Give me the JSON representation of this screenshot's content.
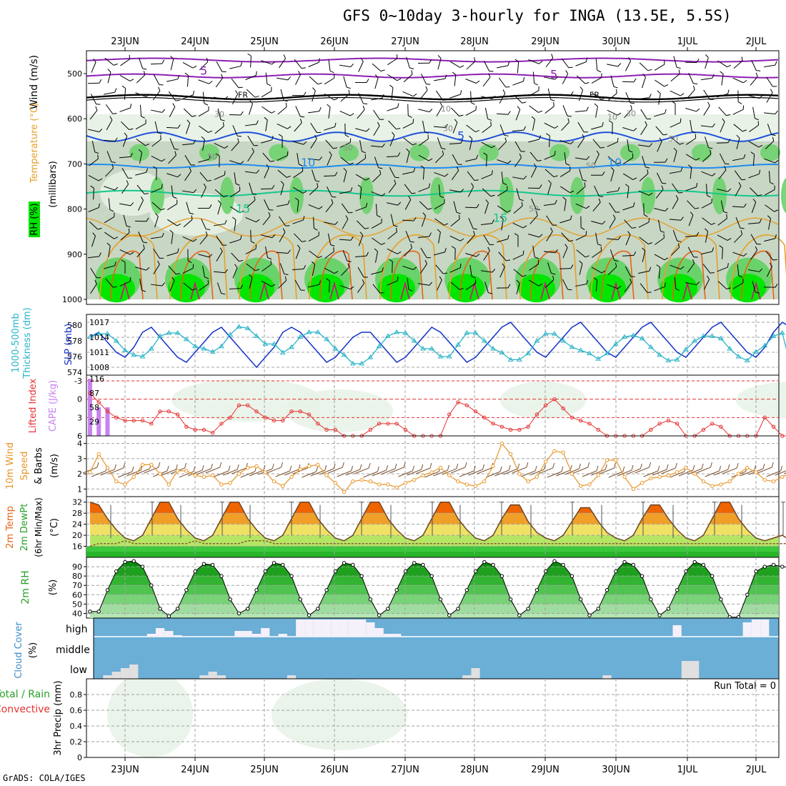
{
  "title": "GFS 0~10day 3-hourly for INGA (13.5E, 5.5S)",
  "credit": "GrADS: COLA/IGES",
  "days": [
    "23JUN",
    "24JUN",
    "25JUN",
    "26JUN",
    "27JUN",
    "28JUN",
    "29JUN",
    "30JUN",
    "1JUL",
    "2JUL"
  ],
  "colors": {
    "axis": "#000000",
    "grid": "#a0a0a0",
    "rh_light": "#e8f2e6",
    "rh_mid": "#c8d6c4",
    "rh_green": "#6ad26a",
    "rh_bright": "#00e600",
    "t_purple": "#8c1eb4",
    "t_black": "#000000",
    "t_blue": "#1e50dc",
    "t_sky": "#1e8cf0",
    "t_teal": "#14c88c",
    "t_orange": "#e6a028",
    "t_darkorange": "#e66414",
    "t_magenta": "#c81e78",
    "slp": "#1432c8",
    "thickness": "#28b4c8",
    "lifted": "#e63232",
    "cape": "#c882f0",
    "wind_speed": "#e69628",
    "wind_barb": "#7a5030",
    "temp_fill_high": "#f06400",
    "temp_fill_mid": "#f0a028",
    "temp_fill_warm": "#f0e164",
    "temp_fill_cool": "#b4e664",
    "temp_fill_green": "#3cc83c",
    "temp_fill_dark": "#28b428",
    "rh_fill_dark": "#1ea01e",
    "cloud_bg": "#6baed6",
    "cloud_block": "#e0e0e0",
    "cloud_high": "#f5f0fa"
  },
  "panels": {
    "upper": {
      "labels": [
        "Wind (m/s)",
        "Temperature (°C)",
        "RH (%)",
        "(millibars)"
      ],
      "ticks": [
        "500",
        "600",
        "700",
        "800",
        "900",
        "1000"
      ],
      "contour_labels": [
        "5",
        "5",
        "FR",
        "FR",
        "10",
        "30",
        "30",
        "10",
        "30",
        "30",
        "50",
        "50",
        "50",
        "50",
        "10",
        "10",
        "15",
        "15",
        "5"
      ]
    },
    "slp": {
      "labels": [
        "1000-500mb",
        "Thickness (dm)",
        "SLP (mb)"
      ],
      "left_ticks": [
        "580",
        "578",
        "576",
        "574"
      ],
      "right_ticks": [
        "1017",
        "1014",
        "1011",
        "1008"
      ]
    },
    "cape": {
      "labels": [
        "Lifted Index",
        "CAPE (J/kg)"
      ],
      "li_ticks": [
        "-3",
        "0",
        "3",
        "6"
      ],
      "cape_ticks": [
        "116",
        "87",
        "58",
        "29"
      ]
    },
    "wind": {
      "labels": [
        "10m Wind",
        "Speed",
        "& Barbs",
        "(m/s)"
      ],
      "ticks": [
        "4",
        "3",
        "2",
        "1"
      ]
    },
    "temp": {
      "labels": [
        "2m Temp",
        "2m DewPt",
        "(6hr Min/Max)",
        "(°C)"
      ],
      "ticks": [
        "32",
        "28",
        "24",
        "20",
        "16"
      ]
    },
    "rh": {
      "labels": [
        "2m RH",
        "(%)"
      ],
      "ticks": [
        "90",
        "80",
        "70",
        "60",
        "50",
        "40"
      ]
    },
    "cloud": {
      "labels": [
        "Cloud Cover",
        "(%)"
      ],
      "levels": [
        "high",
        "middle",
        "low"
      ]
    },
    "precip": {
      "labels": [
        "Total / Rain",
        "Convective",
        "3hr Precip (mm)"
      ],
      "ticks": [
        "0.8",
        "0.6",
        "0.4",
        "0.2",
        "0"
      ],
      "run_total": "Run Total = 0"
    }
  },
  "chart_data": [
    {
      "type": "line",
      "title": "",
      "series": [
        {
          "name": "SLP (mb)",
          "values": [
            1014,
            1015,
            1013,
            1011,
            1010,
            1012,
            1015,
            1016,
            1014,
            1012,
            1010,
            1009,
            1011,
            1013,
            1015,
            1016,
            1014,
            1012,
            1010,
            1008,
            1010,
            1012,
            1015,
            1016,
            1015,
            1013,
            1011,
            1009,
            1010,
            1012,
            1014,
            1015,
            1015,
            1013,
            1011,
            1009,
            1010,
            1012,
            1014,
            1016,
            1015,
            1013,
            1011,
            1009,
            1010,
            1012,
            1014,
            1016,
            1017,
            1015,
            1013,
            1011,
            1010,
            1012,
            1014,
            1016,
            1017,
            1015,
            1013,
            1011,
            1010,
            1012,
            1014,
            1016,
            1017,
            1015,
            1013,
            1011,
            1010,
            1012,
            1014,
            1016,
            1017,
            1015,
            1013,
            1011,
            1010,
            1012,
            1015,
            1017,
            1016
          ]
        },
        {
          "name": "1000-500mb Thickness (dm)",
          "values": [
            578.5,
            578.9,
            578.9,
            578.0,
            576.8,
            576.2,
            576.0,
            577.0,
            578.6,
            579.0,
            579.0,
            578.2,
            577.3,
            577.0,
            576.6,
            577.3,
            578.8,
            579.8,
            579.6,
            578.6,
            577.6,
            577.6,
            576.5,
            577.2,
            578.5,
            579.1,
            579.1,
            578.2,
            577.0,
            576.2,
            575.1,
            575.1,
            575.9,
            577.3,
            578.6,
            579.1,
            579.0,
            578.0,
            577.0,
            577.0,
            576.0,
            576.0,
            577.5,
            579.0,
            579.0,
            578.0,
            577.0,
            576.5,
            575.6,
            575.6,
            576.4,
            578.0,
            578.9,
            578.9,
            578.0,
            577.2,
            576.8,
            576.4,
            575.7,
            576.4,
            577.6,
            578.5,
            578.7,
            578.3,
            577.2,
            576.2,
            575.5,
            575.6,
            576.9,
            578.0,
            578.6,
            578.6,
            578.3,
            577.0,
            576.0,
            575.5,
            576.6,
            577.4,
            578.6,
            579.0,
            574.6
          ]
        }
      ],
      "ylim_slp": [
        1007,
        1018
      ],
      "ylim_thickness": [
        574,
        581
      ]
    },
    {
      "type": "line",
      "series": [
        {
          "name": "Lifted Index",
          "values": [
            -1,
            0.5,
            2,
            3,
            3.5,
            3.5,
            3.5,
            4,
            2,
            2,
            2.5,
            4.5,
            5,
            5,
            5.5,
            4,
            3,
            1,
            1,
            2,
            3,
            3.5,
            3.5,
            2,
            2,
            2.5,
            4,
            5,
            5,
            6,
            6,
            6,
            5,
            4,
            4,
            4,
            5,
            6,
            6,
            6,
            6,
            2.5,
            0.5,
            1,
            2,
            3,
            4,
            4.5,
            5,
            5,
            4.5,
            2.5,
            1,
            0,
            1.5,
            3,
            3.5,
            4,
            5,
            6,
            6,
            6,
            6,
            6,
            5,
            4,
            3.5,
            4,
            6,
            6,
            5,
            4,
            4.5,
            6,
            6,
            6,
            6,
            3,
            4.5,
            6,
            6
          ]
        },
        {
          "name": "CAPE (J/kg)",
          "values": [
            116,
            58,
            58,
            0,
            0,
            0,
            0,
            0,
            0,
            0,
            0,
            0,
            0,
            0,
            0,
            0,
            0,
            0,
            0,
            0,
            0,
            0,
            0,
            0,
            0,
            0,
            0,
            0,
            0,
            0,
            0,
            0,
            0,
            0,
            0,
            0,
            0,
            0,
            0,
            0,
            0,
            0,
            0,
            0,
            0,
            0,
            0,
            0,
            0,
            0,
            0,
            0,
            0,
            0,
            0,
            0,
            0,
            0,
            0,
            0,
            0,
            0,
            0,
            0,
            0,
            0,
            0,
            0,
            0,
            0,
            0,
            0,
            0,
            0,
            0,
            0,
            0,
            0,
            0,
            0,
            0
          ]
        }
      ],
      "li_range": [
        -3,
        6
      ],
      "cape_range": [
        0,
        116
      ]
    },
    {
      "type": "line",
      "series": [
        {
          "name": "10m Wind Speed (m/s)",
          "values": [
            2.1,
            3.3,
            2.4,
            1.5,
            1.3,
            1.8,
            2.6,
            2.6,
            2.0,
            1.3,
            2.2,
            2.2,
            1.9,
            1.8,
            1.9,
            1.3,
            1.4,
            2.0,
            2.4,
            2.5,
            2.1,
            1.5,
            1.2,
            1.8,
            2.3,
            2.5,
            2.6,
            1.9,
            1.4,
            0.8,
            1.5,
            1.6,
            1.5,
            1.3,
            1.3,
            1.1,
            1.4,
            1.6,
            1.9,
            2.1,
            2.4,
            1.9,
            1.5,
            1.3,
            1.2,
            1.5,
            2.5,
            4.0,
            3.3,
            2.0,
            1.5,
            1.8,
            2.8,
            3.5,
            3.4,
            2.0,
            1.2,
            1.3,
            1.9,
            2.9,
            2.9,
            1.8,
            1.0,
            1.4,
            1.7,
            1.8,
            1.9,
            2.1,
            2.4,
            2.0,
            1.5,
            1.2,
            1.3,
            1.5,
            2.0,
            2.4,
            2.1,
            1.6,
            1.5,
            1.8,
            2.1
          ]
        }
      ],
      "ylim": [
        0.5,
        4.5
      ]
    },
    {
      "type": "area",
      "series": [
        {
          "name": "2m Temp (°C)",
          "values": [
            32,
            31,
            26,
            22,
            19,
            18,
            20,
            26,
            32,
            32,
            26,
            22,
            19,
            18,
            20,
            26,
            32,
            32,
            26,
            22,
            19,
            18,
            20,
            26,
            32,
            32,
            26,
            22,
            19,
            18,
            20,
            26,
            32,
            32,
            26,
            22,
            19,
            18,
            20,
            26,
            32,
            32,
            26,
            22,
            19,
            18,
            20,
            26,
            31,
            31,
            25,
            21,
            19,
            18,
            20,
            25,
            30,
            30,
            25,
            21,
            19,
            18,
            20,
            26,
            31,
            31,
            26,
            22,
            19,
            18,
            20,
            26,
            32,
            32,
            26,
            22,
            19,
            18,
            19,
            20,
            18
          ]
        },
        {
          "name": "2m DewPt (°C)",
          "values": [
            16,
            17,
            17,
            17,
            18,
            17,
            17,
            17,
            17,
            17,
            17,
            17,
            18,
            17,
            17,
            17,
            17,
            17,
            18,
            18,
            18,
            17,
            17,
            17,
            17,
            17,
            17,
            17,
            17,
            17,
            17,
            17,
            17,
            17,
            17,
            17,
            17,
            17,
            17,
            17,
            17,
            17,
            17,
            17,
            17,
            17,
            17,
            17,
            17,
            17,
            17,
            17,
            17,
            17,
            17,
            17,
            17,
            17,
            17,
            17,
            17,
            17,
            17,
            17,
            17,
            17,
            17,
            17,
            17,
            17,
            17,
            17,
            17,
            17,
            17,
            17,
            17,
            17,
            17,
            17,
            17
          ]
        }
      ],
      "ylim": [
        12,
        34
      ]
    },
    {
      "type": "area",
      "series": [
        {
          "name": "2m RH (%)",
          "values": [
            42,
            42,
            65,
            85,
            95,
            96,
            90,
            70,
            45,
            37,
            45,
            65,
            85,
            93,
            92,
            80,
            55,
            40,
            45,
            65,
            85,
            94,
            92,
            80,
            55,
            38,
            45,
            65,
            85,
            94,
            92,
            80,
            55,
            38,
            45,
            65,
            85,
            94,
            92,
            80,
            55,
            38,
            45,
            65,
            85,
            95,
            92,
            80,
            55,
            38,
            45,
            65,
            85,
            96,
            92,
            80,
            55,
            38,
            45,
            65,
            85,
            95,
            92,
            80,
            55,
            38,
            45,
            65,
            85,
            95,
            92,
            80,
            55,
            36,
            36,
            60,
            85,
            90,
            92,
            90,
            89
          ]
        }
      ],
      "ylim": [
        35,
        100
      ]
    },
    {
      "type": "bar",
      "series": [
        {
          "name": "high",
          "values": [
            0,
            0,
            0,
            0,
            0,
            0,
            0,
            10,
            30,
            20,
            5,
            0,
            0,
            0,
            0,
            0,
            0,
            20,
            20,
            10,
            30,
            0,
            10,
            0,
            60,
            60,
            60,
            60,
            60,
            60,
            60,
            60,
            50,
            30,
            10,
            10,
            0,
            0,
            0,
            0,
            0,
            0,
            0,
            0,
            0,
            0,
            0,
            0,
            0,
            0,
            0,
            0,
            0,
            0,
            0,
            0,
            0,
            0,
            0,
            0,
            0,
            0,
            0,
            0,
            0,
            0,
            0,
            40,
            0,
            0,
            0,
            0,
            0,
            0,
            0,
            50,
            60,
            60,
            0,
            0,
            0
          ]
        },
        {
          "name": "low",
          "values": [
            0,
            0,
            5,
            10,
            15,
            20,
            0,
            0,
            0,
            0,
            0,
            0,
            0,
            5,
            10,
            5,
            0,
            0,
            0,
            0,
            0,
            0,
            0,
            5,
            0,
            0,
            0,
            0,
            0,
            0,
            0,
            0,
            0,
            0,
            0,
            0,
            0,
            0,
            0,
            0,
            0,
            0,
            0,
            5,
            15,
            0,
            0,
            0,
            0,
            0,
            0,
            0,
            0,
            0,
            0,
            0,
            0,
            0,
            0,
            5,
            0,
            0,
            0,
            0,
            0,
            0,
            0,
            0,
            25,
            25,
            0,
            0,
            0,
            0,
            0,
            0,
            0,
            0,
            0,
            0,
            0
          ]
        }
      ]
    }
  ]
}
